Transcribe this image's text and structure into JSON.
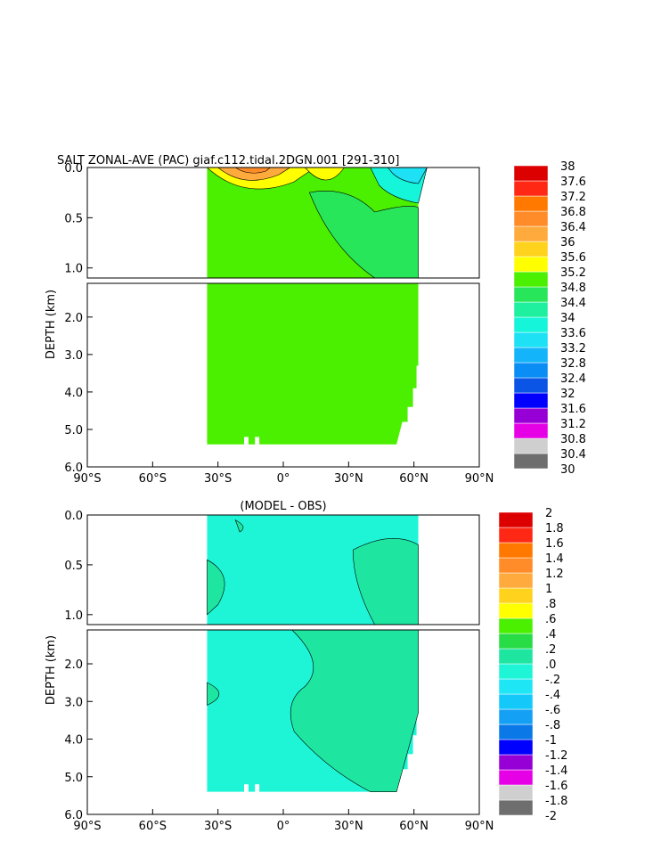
{
  "chart_data": [
    {
      "type": "heatmap",
      "title": "SALT ZONAL-AVE (PAC) giaf.c112.tidal.2DGN.001 [291-310]",
      "ylabel": "DEPTH (km)",
      "x_ticks": [
        "90°S",
        "60°S",
        "30°S",
        "0°",
        "30°N",
        "60°N",
        "90°N"
      ],
      "y_ticks_upper": [
        "0.0",
        "0.5",
        "1.0"
      ],
      "y_ticks_lower": [
        "2.0",
        "3.0",
        "4.0",
        "5.0",
        "6.0"
      ],
      "xlim": [
        -90,
        90
      ],
      "ylim_upper_km": [
        0,
        1.1
      ],
      "ylim_lower_km": [
        1.1,
        6
      ],
      "colorbar": [
        "30",
        "30.4",
        "30.8",
        "31.2",
        "31.6",
        "32",
        "32.4",
        "32.8",
        "33.2",
        "33.6",
        "34",
        "34.4",
        "34.8",
        "35.2",
        "35.6",
        "36",
        "36.4",
        "36.8",
        "37.2",
        "37.6",
        "38"
      ],
      "colors": [
        "#6e6e6e",
        "#cfcfcf",
        "#e600e6",
        "#9600d6",
        "#0000ff",
        "#0a55e6",
        "#0a8ef5",
        "#14b4fa",
        "#1ee1f5",
        "#14f5d9",
        "#1ef0a0",
        "#28e65a",
        "#4bf000",
        "#ffff00",
        "#ffd21e",
        "#ffaa3c",
        "#ff8c28",
        "#ff7800",
        "#ff2814",
        "#dc0000"
      ],
      "fill_value": "34.4-34.8",
      "land_extent": {
        "south_lat": -35,
        "north_lat": 62,
        "bottom_depth_km": 5.4
      }
    },
    {
      "type": "heatmap",
      "title": "(MODEL - OBS)",
      "ylabel": "DEPTH (km)",
      "x_ticks": [
        "90°S",
        "60°S",
        "30°S",
        "0°",
        "30°N",
        "60°N",
        "90°N"
      ],
      "y_ticks_upper": [
        "0.0",
        "0.5",
        "1.0"
      ],
      "y_ticks_lower": [
        "2.0",
        "3.0",
        "4.0",
        "5.0",
        "6.0"
      ],
      "xlim": [
        -90,
        90
      ],
      "colorbar": [
        "-2",
        "-1.8",
        "-1.6",
        "-1.4",
        "-1.2",
        "-1",
        "-.8",
        "-.6",
        "-.4",
        "-.2",
        ".0",
        ".2",
        ".4",
        ".6",
        ".8",
        "1",
        "1.2",
        "1.4",
        "1.6",
        "1.8",
        "2"
      ],
      "colors": [
        "#6e6e6e",
        "#cfcfcf",
        "#e600e6",
        "#9600d6",
        "#0000ff",
        "#0a78e6",
        "#14a0f5",
        "#14c8fa",
        "#1ee6f5",
        "#1ef5d7",
        "#1ee6a0",
        "#28dc46",
        "#4bf000",
        "#ffff00",
        "#ffd21e",
        "#ffaa3c",
        "#ff8c28",
        "#ff7800",
        "#ff2814",
        "#dc0000"
      ],
      "fill_value": "-0.2-0.0",
      "secondary_value": "0.0-0.2"
    }
  ]
}
